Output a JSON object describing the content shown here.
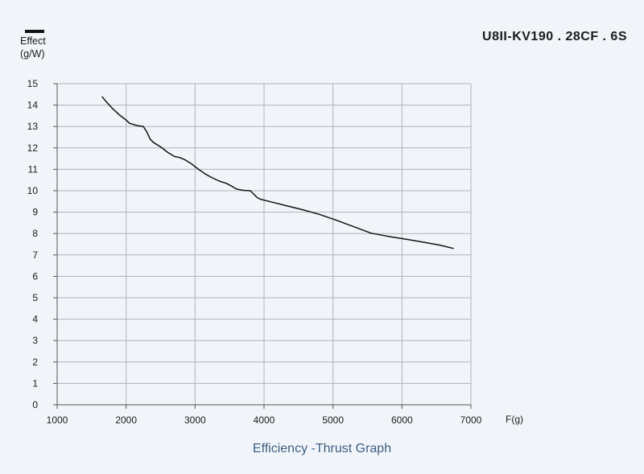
{
  "chart_data": {
    "type": "line",
    "title": "U8II-KV190 . 28CF . 6S",
    "caption": "Efficiency -Thrust Graph",
    "legend_label": "Effect",
    "ylabel": "(g/W)",
    "xlabel": "F(g)",
    "xlim": [
      1000,
      7000
    ],
    "ylim": [
      0,
      15
    ],
    "xticks": [
      1000,
      2000,
      3000,
      4000,
      5000,
      6000,
      7000
    ],
    "yticks": [
      0,
      1,
      2,
      3,
      4,
      5,
      6,
      7,
      8,
      9,
      10,
      11,
      12,
      13,
      14,
      15
    ],
    "grid": true,
    "legend_position": "top-left",
    "series": [
      {
        "color": "#111111",
        "x": [
          1650,
          1700,
          1800,
          1900,
          2000,
          2050,
          2150,
          2250,
          2300,
          2350,
          2400,
          2500,
          2600,
          2700,
          2780,
          2850,
          2950,
          3050,
          3150,
          3250,
          3350,
          3450,
          3550,
          3600,
          3650,
          3700,
          3800,
          3850,
          3900,
          3950,
          4100,
          4300,
          4550,
          4800,
          5050,
          5300,
          5550,
          5800,
          6050,
          6300,
          6550,
          6750
        ],
        "y": [
          14.4,
          14.2,
          13.85,
          13.55,
          13.3,
          13.15,
          13.05,
          13.0,
          12.75,
          12.4,
          12.25,
          12.05,
          11.8,
          11.6,
          11.55,
          11.45,
          11.25,
          11.0,
          10.78,
          10.6,
          10.45,
          10.35,
          10.18,
          10.08,
          10.05,
          10.02,
          10.0,
          9.85,
          9.68,
          9.6,
          9.48,
          9.32,
          9.12,
          8.9,
          8.62,
          8.32,
          8.02,
          7.87,
          7.74,
          7.6,
          7.46,
          7.3
        ]
      }
    ]
  }
}
